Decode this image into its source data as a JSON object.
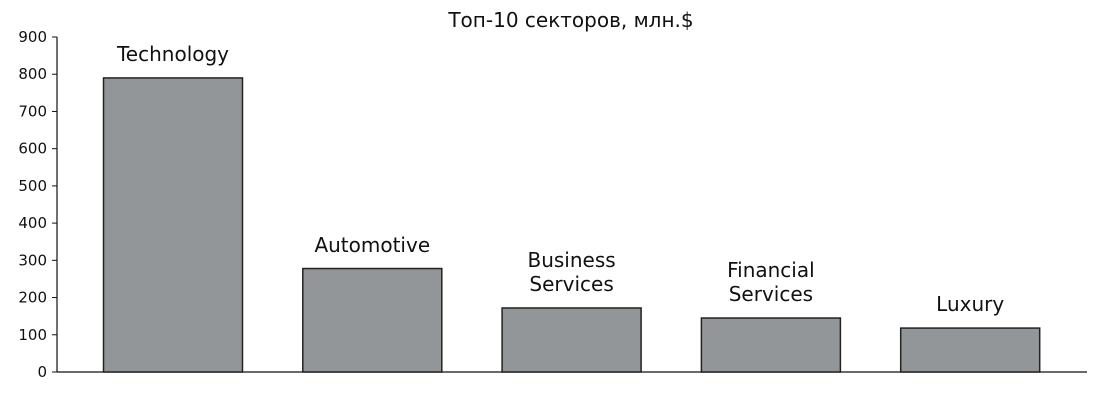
{
  "chart_data": {
    "type": "bar",
    "title": "Топ-10 секторов, млн.$",
    "categories": [
      "Technology",
      "Automotive",
      "Business Services",
      "Financial Services",
      "Luxury"
    ],
    "values": [
      790,
      278,
      172,
      145,
      118
    ],
    "color": "#939698",
    "ylim": [
      0,
      900
    ],
    "yticks": [
      0,
      100,
      200,
      300,
      400,
      500,
      600,
      700,
      800,
      900
    ],
    "grid": false
  }
}
